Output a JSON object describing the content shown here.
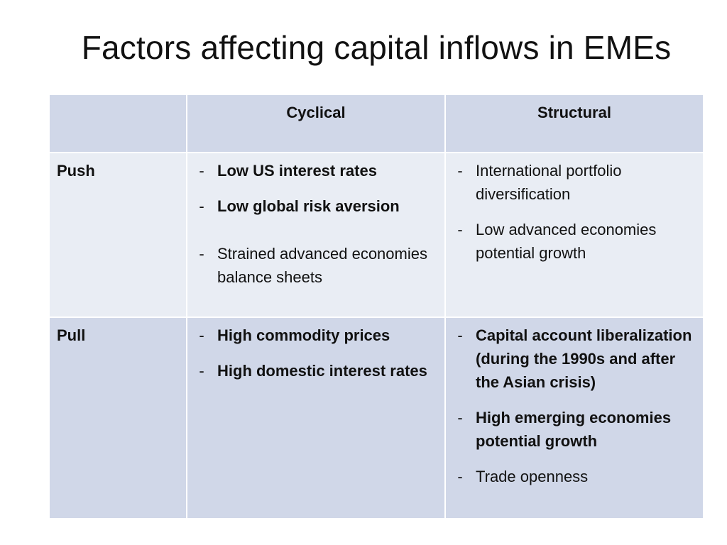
{
  "title": "Factors affecting capital inflows in EMEs",
  "table": {
    "headers": [
      "",
      "Cyclical",
      "Structural"
    ],
    "rows": [
      {
        "label": "Push",
        "cyclical": [
          {
            "text": "Low US interest rates",
            "bold": true
          },
          {
            "text": "Low global risk aversion",
            "bold": true
          },
          {
            "text": "Strained advanced economies balance sheets",
            "bold": false
          }
        ],
        "structural": [
          {
            "text": "International portfolio diversification",
            "bold": false
          },
          {
            "text": "Low advanced economies potential growth",
            "bold": false
          }
        ]
      },
      {
        "label": "Pull",
        "cyclical": [
          {
            "text": "High commodity prices",
            "bold": true
          },
          {
            "text": "High domestic interest rates",
            "bold": true
          }
        ],
        "structural": [
          {
            "text": "Capital account liberalization (during the 1990s and after the Asian crisis)",
            "bold": true
          },
          {
            "text": "High emerging economies potential growth",
            "bold": true
          },
          {
            "text": "Trade openness",
            "bold": false
          }
        ]
      }
    ],
    "bullet": "-"
  },
  "colors": {
    "header_fill": "#d0d7e8",
    "push_fill": "#e9edf4",
    "pull_fill": "#d0d7e8",
    "grid": "#ffffff"
  }
}
